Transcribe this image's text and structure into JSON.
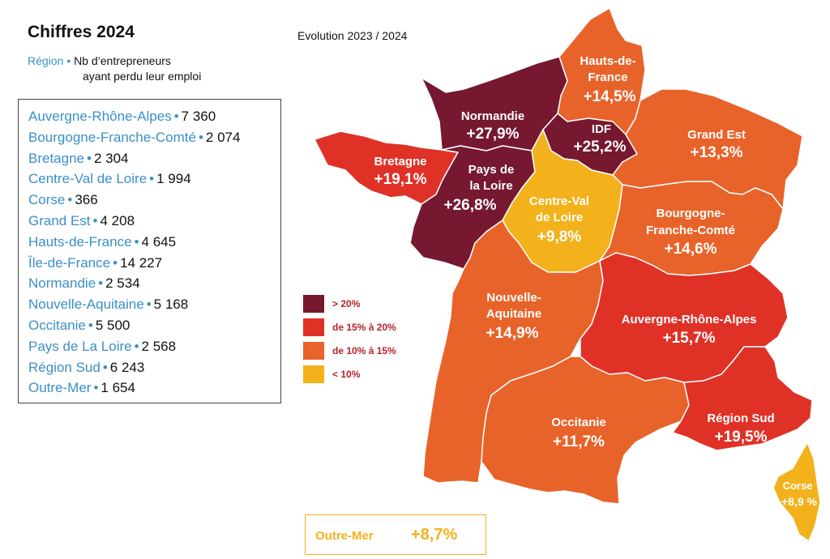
{
  "header": {
    "title": "Chiffres 2024",
    "subtitle": "Evolution 2023 / 2024",
    "legend_region_label": "Région",
    "legend_bullet": "•",
    "legend_desc_line1": "Nb d’entrepreneurs",
    "legend_desc_line2": "ayant perdu leur emploi"
  },
  "stats": [
    {
      "region": "Auvergne-Rhône-Alpes",
      "value": "7 360"
    },
    {
      "region": "Bourgogne-Franche-Comté",
      "value": "2 074"
    },
    {
      "region": "Bretagne",
      "value": "2 304"
    },
    {
      "region": "Centre-Val de Loire",
      "value": "1 994"
    },
    {
      "region": "Corse",
      "value": "366"
    },
    {
      "region": "Grand Est",
      "value": "4 208"
    },
    {
      "region": "Hauts-de-France",
      "value": "4 645"
    },
    {
      "region": "Île-de-France",
      "value": "14 227"
    },
    {
      "region": "Normandie",
      "value": "2 534"
    },
    {
      "region": "Nouvelle-Aquitaine",
      "value": "5 168"
    },
    {
      "region": "Occitanie",
      "value": "5 500"
    },
    {
      "region": "Pays de La Loire",
      "value": "2 568"
    },
    {
      "region": "Région Sud",
      "value": "6 243"
    },
    {
      "region": "Outre-Mer",
      "value": "1 654"
    }
  ],
  "map": {
    "hauts_de_france": {
      "name1": "Hauts-de-",
      "name2": "France",
      "pct": "+14,5%",
      "color": "#e8632a"
    },
    "normandie": {
      "name": "Normandie",
      "pct": "+27,9%",
      "color": "#761830"
    },
    "idf": {
      "name": "IDF",
      "pct": "+25,2%",
      "color": "#761830"
    },
    "grand_est": {
      "name": "Grand Est",
      "pct": "+13,3%",
      "color": "#e8632a"
    },
    "bretagne": {
      "name": "Bretagne",
      "pct": "+19,1%",
      "color": "#e03127"
    },
    "pays_de_la_loire": {
      "name1": "Pays de",
      "name2": "la Loire",
      "pct": "+26,8%",
      "color": "#761830"
    },
    "centre_val_de_loire": {
      "name1": "Centre-Val",
      "name2": "de Loire",
      "pct": "+9,8%",
      "color": "#f3b21b"
    },
    "bourgogne_franche_comte": {
      "name1": "Bourgogne-",
      "name2": "Franche-Comté",
      "pct": "+14,6%",
      "color": "#e8632a"
    },
    "nouvelle_aquitaine": {
      "name1": "Nouvelle-",
      "name2": "Aquitaine",
      "pct": "+14,9%",
      "color": "#e8632a"
    },
    "auvergne_rhone_alpes": {
      "name": "Auvergne-Rhône-Alpes",
      "pct": "+15,7%",
      "color": "#e03127"
    },
    "occitanie": {
      "name": "Occitanie",
      "pct": "+11,7%",
      "color": "#e8632a"
    },
    "region_sud": {
      "name": "Région Sud",
      "pct": "+19,5%",
      "color": "#e03127"
    },
    "corse": {
      "name": "Corse",
      "pct": "+8,9 %",
      "color": "#f3b21b"
    }
  },
  "key": [
    {
      "label": "> 20%",
      "color": "#761830"
    },
    {
      "label": "de 15% à 20%",
      "color": "#e03127"
    },
    {
      "label": "de 10% à 15%",
      "color": "#e8632a"
    },
    {
      "label": "< 10%",
      "color": "#f3b21b"
    }
  ],
  "outre_mer": {
    "name": "Outre-Mer",
    "pct": "+8,7%",
    "color": "#f3b21b"
  }
}
